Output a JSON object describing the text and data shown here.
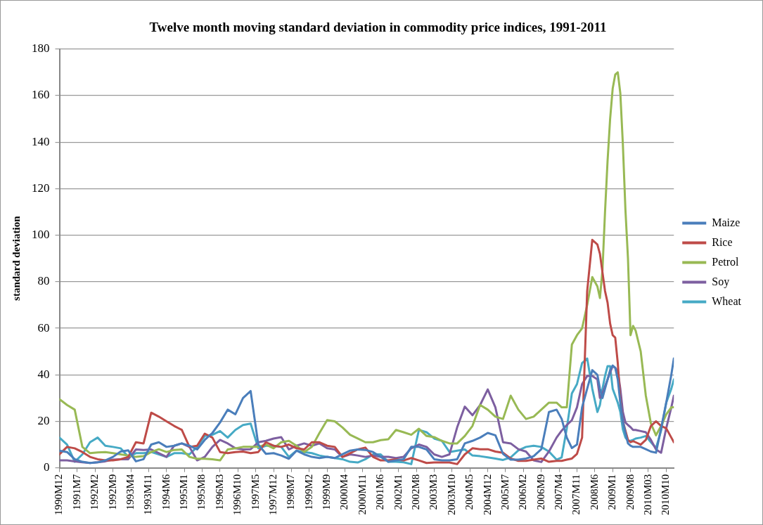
{
  "chart_data": {
    "type": "line",
    "title": "Twelve month moving standard deviation in commodity price indices, 1991-2011",
    "ylabel": "standard deviation",
    "x": [
      "1990-12",
      "1991-03",
      "1991-06",
      "1991-09",
      "1991-12",
      "1992-03",
      "1992-06",
      "1992-09",
      "1992-12",
      "1993-03",
      "1993-06",
      "1993-09",
      "1993-12",
      "1994-03",
      "1994-06",
      "1994-09",
      "1994-12",
      "1995-03",
      "1995-06",
      "1995-09",
      "1995-12",
      "1996-03",
      "1996-06",
      "1996-09",
      "1996-12",
      "1997-03",
      "1997-06",
      "1997-09",
      "1997-12",
      "1998-03",
      "1998-06",
      "1998-09",
      "1998-12",
      "1999-03",
      "1999-06",
      "1999-09",
      "1999-12",
      "2000-03",
      "2000-06",
      "2000-09",
      "2000-12",
      "2001-03",
      "2001-06",
      "2001-09",
      "2001-12",
      "2002-03",
      "2002-06",
      "2002-09",
      "2002-12",
      "2003-03",
      "2003-06",
      "2003-09",
      "2003-12",
      "2004-03",
      "2004-06",
      "2004-09",
      "2004-12",
      "2005-03",
      "2005-06",
      "2005-09",
      "2005-12",
      "2006-03",
      "2006-06",
      "2006-09",
      "2006-12",
      "2007-03",
      "2007-05",
      "2007-07",
      "2007-09",
      "2007-11",
      "2008-01",
      "2008-03",
      "2008-05",
      "2008-07",
      "2008-08",
      "2008-09",
      "2008-10",
      "2008-11",
      "2008-12",
      "2009-01",
      "2009-02",
      "2009-03",
      "2009-04",
      "2009-05",
      "2009-06",
      "2009-07",
      "2009-08",
      "2009-09",
      "2009-10",
      "2009-12",
      "2010-02",
      "2010-04",
      "2010-06",
      "2010-08",
      "2010-10",
      "2010-12",
      "2011-01"
    ],
    "series": [
      {
        "name": "Maize",
        "color": "#4a7ebb",
        "values": [
          7.4,
          6.8,
          3.7,
          2.6,
          2.1,
          2.4,
          3.2,
          4.7,
          7,
          7.5,
          2.8,
          3.7,
          10,
          11,
          9,
          9.5,
          10.5,
          9.5,
          7.9,
          12,
          15,
          19.5,
          25,
          23,
          30,
          33,
          10,
          6,
          6.3,
          5.3,
          3.9,
          7.4,
          5.8,
          4.7,
          4.2,
          4.7,
          4.2,
          5.8,
          7.4,
          7.9,
          7.7,
          6.8,
          4.7,
          2.6,
          3.2,
          3.7,
          9,
          9,
          7.9,
          3.7,
          3.2,
          3.2,
          3.7,
          10.5,
          11.6,
          13,
          15,
          14,
          6,
          3.5,
          3.5,
          4,
          5,
          8,
          24,
          25,
          21,
          13,
          8.5,
          10,
          26,
          34,
          42,
          40,
          34,
          30,
          34,
          38,
          42,
          44,
          43,
          38,
          28,
          20,
          15,
          10.5,
          9.5,
          9,
          9,
          9,
          8,
          7,
          6.5,
          17,
          28,
          40,
          47
        ]
      },
      {
        "name": "Rice",
        "color": "#be4b48",
        "values": [
          5.8,
          9,
          8.4,
          6.8,
          4.7,
          3.7,
          3.2,
          3.2,
          3.7,
          4.7,
          11,
          10.5,
          23.7,
          22,
          20,
          18,
          16.3,
          9,
          9.5,
          14.7,
          13,
          6.8,
          6.3,
          6.8,
          7,
          6.3,
          6.8,
          11,
          9.5,
          9,
          10,
          8.4,
          7.9,
          11,
          11,
          9.5,
          9,
          4.7,
          6.3,
          7.9,
          8.7,
          4.7,
          3.2,
          3.2,
          3.7,
          3.2,
          4.2,
          3.2,
          2.1,
          2.3,
          2.3,
          2.3,
          1.6,
          5.8,
          8.4,
          8,
          8,
          7,
          6.5,
          4,
          3,
          3,
          3.5,
          4,
          2.6,
          3,
          3,
          3.5,
          4,
          6,
          13,
          76,
          98,
          96,
          92,
          84,
          76,
          71,
          62,
          57,
          56,
          45,
          29,
          20,
          16,
          12,
          11,
          11.5,
          11,
          10,
          12,
          18,
          20,
          18,
          17,
          13,
          11
        ]
      },
      {
        "name": "Petrol",
        "color": "#98b954",
        "values": [
          29.5,
          27,
          25,
          9,
          6.3,
          6.6,
          6.8,
          6.3,
          5.8,
          5.3,
          4.7,
          5,
          6.8,
          8,
          6.8,
          7.7,
          7.9,
          4.7,
          3.9,
          3.9,
          3.7,
          3.2,
          7.9,
          8.4,
          9,
          9,
          9,
          10,
          8.4,
          11,
          11.6,
          9.5,
          6.8,
          9,
          15,
          20.5,
          20,
          17.4,
          14.2,
          12.6,
          11,
          11,
          11.9,
          12.3,
          16.3,
          15.3,
          14.2,
          16.8,
          13.7,
          13.2,
          11.6,
          10.5,
          10.5,
          13.7,
          18,
          27,
          25,
          22,
          21,
          31,
          25,
          21,
          22,
          25,
          28,
          28,
          26,
          26,
          53,
          57,
          60,
          70,
          82,
          78,
          73,
          85,
          110,
          132,
          150,
          163,
          169,
          170,
          161,
          139,
          111,
          90,
          57,
          61,
          59,
          50,
          31,
          19,
          14,
          18,
          23,
          26,
          26
        ]
      },
      {
        "name": "Soy",
        "color": "#7d5fa0",
        "values": [
          3.2,
          3.2,
          2.8,
          2.4,
          2.1,
          2.4,
          2.8,
          3.5,
          3.7,
          3.7,
          7.9,
          7.7,
          7.9,
          6.3,
          4.7,
          9.5,
          10.5,
          9,
          3.2,
          4.7,
          9,
          12,
          10.5,
          8.4,
          7.9,
          8,
          11,
          11.6,
          12.6,
          13.2,
          7.9,
          9.5,
          10.5,
          9.5,
          10.5,
          8.4,
          7.9,
          4.7,
          5.8,
          5.3,
          4.7,
          5.3,
          4.7,
          4.7,
          4.2,
          4.7,
          8.4,
          10,
          9,
          5.8,
          4.7,
          5.8,
          17.4,
          26.3,
          22.6,
          27,
          33.7,
          26,
          11,
          10.5,
          8,
          7,
          3.2,
          2.5,
          7,
          13,
          16,
          18.4,
          20.5,
          26,
          36,
          39.5,
          39.5,
          38,
          30,
          32,
          35,
          38,
          41,
          43.7,
          43,
          41.6,
          34,
          24,
          19.5,
          18.4,
          17.5,
          16.3,
          16.3,
          15.8,
          15.3,
          12,
          7.9,
          6.5,
          17,
          26,
          31
        ]
      },
      {
        "name": "Wheat",
        "color": "#46aac5",
        "values": [
          13,
          10,
          2.6,
          5.8,
          11,
          13,
          9.5,
          9,
          8.4,
          4.7,
          6.3,
          6.3,
          6.8,
          5.8,
          4.7,
          6.3,
          6.3,
          5.8,
          9,
          13.7,
          14.2,
          15.8,
          13,
          16.3,
          18.4,
          19,
          8.4,
          9.5,
          9.5,
          9,
          4.7,
          7.4,
          6.8,
          6.3,
          5.3,
          4.7,
          4.2,
          3.7,
          2.6,
          2.3,
          3.7,
          5.8,
          5.8,
          2.6,
          2.6,
          2.4,
          1.6,
          16.3,
          15.3,
          12.6,
          11.6,
          6.8,
          7.4,
          7.9,
          5.3,
          5,
          4.5,
          4,
          3.4,
          4.5,
          7.5,
          9,
          9.5,
          9,
          7,
          3.5,
          4.5,
          17,
          32,
          36,
          45,
          47,
          34,
          24,
          27,
          34,
          39.5,
          43.7,
          43.7,
          34,
          31,
          28,
          24,
          16.5,
          13,
          11.6,
          11.6,
          12,
          12.6,
          13,
          13.7,
          11,
          8.5,
          16,
          28,
          34,
          38
        ]
      }
    ],
    "xlim": [
      "1990-12",
      "2011-01"
    ],
    "xticks": [
      {
        "value": "1990-12",
        "label": "1990M12"
      },
      {
        "value": "1991-07",
        "label": "1991M7"
      },
      {
        "value": "1992-02",
        "label": "1992M2"
      },
      {
        "value": "1992-09",
        "label": "1992M9"
      },
      {
        "value": "1993-04",
        "label": "1993M4"
      },
      {
        "value": "1993-11",
        "label": "1993M11"
      },
      {
        "value": "1994-06",
        "label": "1994M6"
      },
      {
        "value": "1995-01",
        "label": "1995M1"
      },
      {
        "value": "1995-08",
        "label": "1995M8"
      },
      {
        "value": "1996-03",
        "label": "1996M3"
      },
      {
        "value": "1996-10",
        "label": "1996M10"
      },
      {
        "value": "1997-05",
        "label": "1997M5"
      },
      {
        "value": "1997-12",
        "label": "1997M12"
      },
      {
        "value": "1998-07",
        "label": "1998M7"
      },
      {
        "value": "1999-02",
        "label": "1999M2"
      },
      {
        "value": "1999-09",
        "label": "1999M9"
      },
      {
        "value": "2000-04",
        "label": "2000M4"
      },
      {
        "value": "2000-11",
        "label": "2000M11"
      },
      {
        "value": "2001-06",
        "label": "2001M6"
      },
      {
        "value": "2002-01",
        "label": "2002M1"
      },
      {
        "value": "2002-08",
        "label": "2002M8"
      },
      {
        "value": "2003-03",
        "label": "2003M3"
      },
      {
        "value": "2003-10",
        "label": "2003M10"
      },
      {
        "value": "2004-05",
        "label": "2004M5"
      },
      {
        "value": "2004-12",
        "label": "2004M12"
      },
      {
        "value": "2005-07",
        "label": "2005M7"
      },
      {
        "value": "2006-02",
        "label": "2006M2"
      },
      {
        "value": "2006-09",
        "label": "2006M9"
      },
      {
        "value": "2007-04",
        "label": "2007M4"
      },
      {
        "value": "2007-11",
        "label": "2007M11"
      },
      {
        "value": "2008-06",
        "label": "2008M6"
      },
      {
        "value": "2009-01",
        "label": "2009M1"
      },
      {
        "value": "2009-08",
        "label": "2009M8"
      },
      {
        "value": "2010-03",
        "label": "2010M03"
      },
      {
        "value": "2010-10",
        "label": "2010M10"
      }
    ],
    "ylim": [
      0,
      180
    ],
    "yticks": [
      0,
      20,
      40,
      60,
      80,
      100,
      120,
      140,
      160,
      180
    ],
    "grid": "y",
    "legend": "right",
    "marker": "none",
    "line_style": "solid"
  }
}
